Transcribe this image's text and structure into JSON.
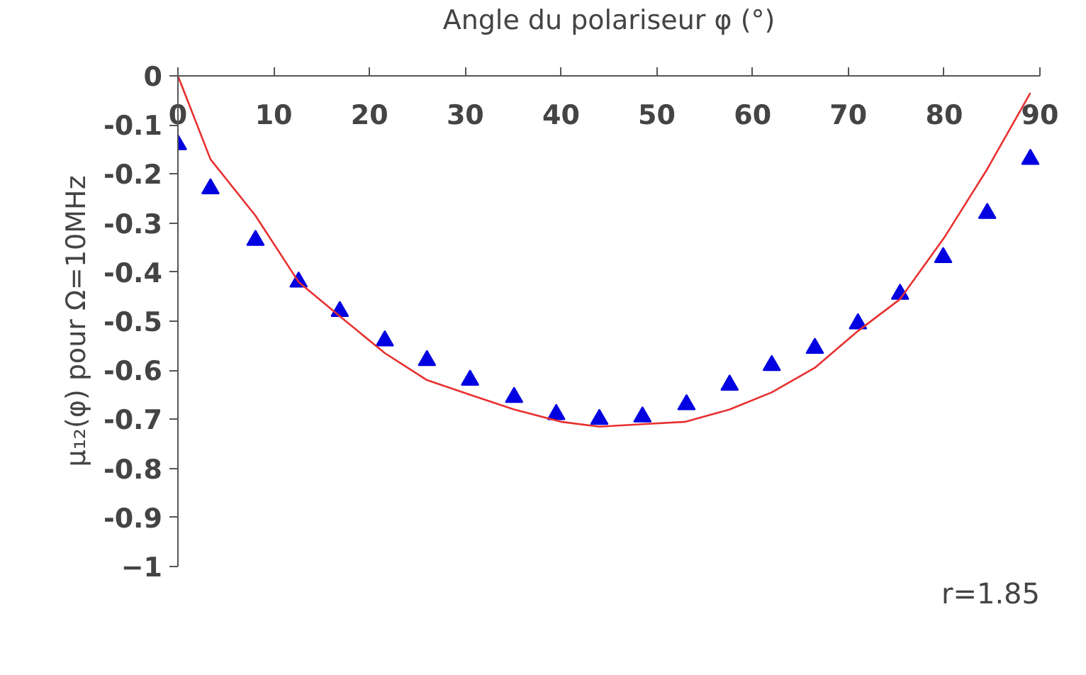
{
  "chart_data": {
    "type": "scatter",
    "xlabel": "Angle du polariseur φ (°)",
    "ylabel": "μ₁₂(φ) pour Ω=10MHz",
    "annotations": [
      "r=1.85"
    ],
    "xlim": [
      0,
      90
    ],
    "xticks": [
      0,
      10,
      20,
      30,
      40,
      50,
      60,
      70,
      80,
      90
    ],
    "ylim": [
      -1,
      0
    ],
    "yticks": [
      0,
      {
        "value": -0.1,
        "label": "-0.1"
      },
      {
        "value": -0.2,
        "label": "-0.2"
      },
      {
        "value": -0.3,
        "label": "-0.3"
      },
      {
        "value": -0.4,
        "label": "-0.4"
      },
      {
        "value": -0.5,
        "label": "-0.5"
      },
      {
        "value": -0.6,
        "label": "-0.6"
      },
      {
        "value": -0.7,
        "label": "-0.7"
      },
      {
        "value": -0.8,
        "label": "-0.8"
      },
      {
        "value": -0.9,
        "label": "-0.9"
      },
      -1
    ],
    "grid": false,
    "marker": "triangle",
    "series": [
      {
        "color": "#0000e0",
        "x": [
          0,
          3.4,
          8.1,
          12.6,
          16.9,
          21.6,
          26,
          30.5,
          35.1,
          39.5,
          44,
          48.5,
          53.1,
          57.6,
          62,
          66.5,
          71,
          75.4,
          79.9,
          84.5,
          89
        ],
        "values": [
          -0.14,
          -0.23,
          -0.335,
          -0.42,
          -0.48,
          -0.54,
          -0.58,
          -0.62,
          -0.655,
          -0.69,
          -0.7,
          -0.695,
          -0.67,
          -0.63,
          -0.59,
          -0.555,
          -0.505,
          -0.445,
          -0.37,
          -0.28,
          -0.17
        ]
      },
      {
        "type": "line",
        "color": "#e83030",
        "marker": "none",
        "x": [
          0,
          3.4,
          8.1,
          12.6,
          16.9,
          21.6,
          26,
          30.5,
          35.1,
          40,
          44,
          48.5,
          53,
          57.6,
          62,
          66.5,
          71,
          75.4,
          80,
          84.5,
          89
        ],
        "values": [
          0,
          -0.17,
          -0.285,
          -0.42,
          -0.49,
          -0.565,
          -0.62,
          -0.65,
          -0.68,
          -0.705,
          -0.715,
          -0.71,
          -0.705,
          -0.68,
          -0.645,
          -0.595,
          -0.52,
          -0.455,
          -0.33,
          -0.19,
          -0.035
        ]
      }
    ]
  }
}
